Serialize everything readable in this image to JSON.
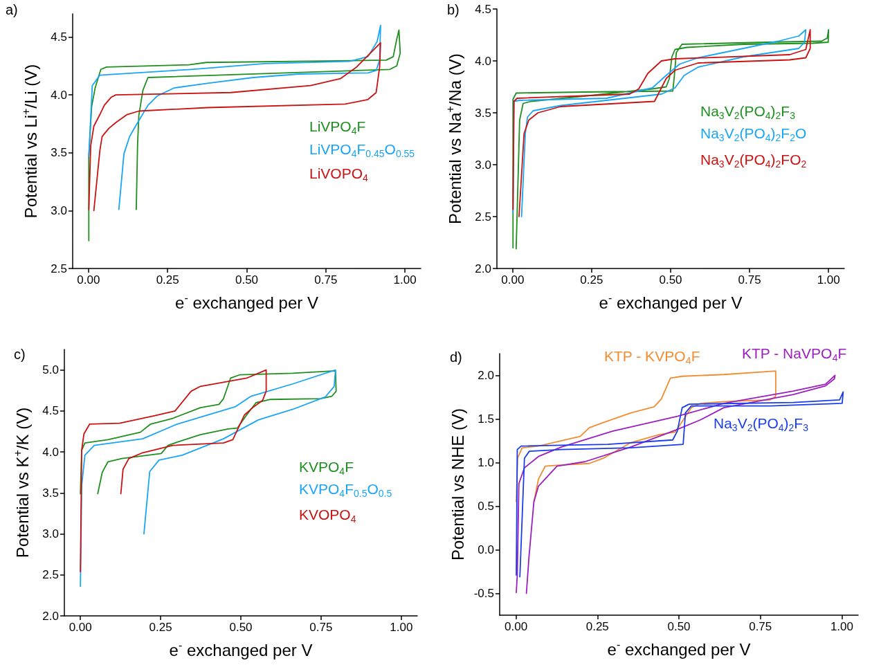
{
  "chart_data": [
    {
      "type": "line",
      "title": "a)",
      "xlabel": "e$^{-}$ exchanged per V",
      "ylabel": "Potential vs Li$^{+}$/Li (V)",
      "xlim": [
        -0.05,
        1.05
      ],
      "xticks": [
        {
          "value": 0,
          "label": "0.00"
        },
        {
          "value": 0.25,
          "label": "0.25"
        },
        {
          "value": 0.5,
          "label": "0.50"
        },
        {
          "value": 0.75,
          "label": "0.75"
        },
        {
          "value": 1,
          "label": "1.00"
        }
      ],
      "ylim": [
        2.5,
        4.7
      ],
      "yticks": [
        {
          "value": 2.5,
          "label": "2.5"
        },
        {
          "value": 3,
          "label": "3.0"
        },
        {
          "value": 3.5,
          "label": "3.5"
        },
        {
          "value": 4,
          "label": "4.0"
        },
        {
          "value": 4.5,
          "label": "4.5"
        }
      ],
      "grid": false,
      "marker": "none",
      "series": [
        {
          "name": "LiVPO$_{4}$F",
          "color": "#1f8f1f",
          "x": [
            0.001,
            0.001,
            0.01,
            0.021,
            0.039,
            0.057,
            0.318,
            0.372,
            0.941,
            0.963,
            0.974,
            0.981,
            0.985,
            0.974,
            0.952,
            0.188,
            0.172,
            0.159,
            0.155,
            0.151
          ],
          "values": [
            2.74,
            3.47,
            3.9,
            4.06,
            4.22,
            4.24,
            4.26,
            4.28,
            4.3,
            4.33,
            4.48,
            4.56,
            4.36,
            4.25,
            4.22,
            4.15,
            4.04,
            3.82,
            3.56,
            3.01
          ]
        },
        {
          "name": "LiVPO$_{4}$F$_{0.45}$O$_{0.55}$",
          "color": "#19a5f5",
          "x": [
            0.001,
            0.012,
            0.036,
            0.325,
            0.557,
            0.825,
            0.883,
            0.912,
            0.923,
            0.92,
            0.909,
            0.883,
            0.666,
            0.521,
            0.376,
            0.271,
            0.217,
            0.188,
            0.151,
            0.13,
            0.112,
            0.096
          ],
          "values": [
            3.47,
            4.08,
            4.17,
            4.22,
            4.27,
            4.29,
            4.33,
            4.46,
            4.6,
            4.3,
            4.21,
            4.19,
            4.18,
            4.15,
            4.1,
            4.06,
            3.99,
            3.91,
            3.74,
            3.64,
            3.49,
            3.01
          ]
        },
        {
          "name": "LiVOPO$_{4}$",
          "color": "#cc1111",
          "x": [
            0.001,
            0.007,
            0.017,
            0.036,
            0.05,
            0.072,
            0.086,
            0.449,
            0.702,
            0.796,
            0.847,
            0.923,
            0.92,
            0.909,
            0.883,
            0.811,
            0.376,
            0.159,
            0.122,
            0.086,
            0.064,
            0.043,
            0.036,
            0.017
          ],
          "values": [
            3.01,
            3.56,
            3.73,
            3.83,
            3.91,
            3.98,
            4.0,
            4.02,
            4.08,
            4.14,
            4.24,
            4.45,
            4.24,
            4.02,
            3.96,
            3.92,
            3.89,
            3.86,
            3.83,
            3.76,
            3.71,
            3.64,
            3.52,
            3.0
          ]
        }
      ]
    },
    {
      "type": "line",
      "title": "b)",
      "xlabel": "e$^{-}$ exchanged per V",
      "ylabel": "Potential vs Na$^{+}$/Na (V)",
      "xlim": [
        -0.05,
        1.05
      ],
      "xticks": [
        {
          "value": 0,
          "label": "0.00"
        },
        {
          "value": 0.25,
          "label": "0.25"
        },
        {
          "value": 0.5,
          "label": "0.50"
        },
        {
          "value": 0.75,
          "label": "0.75"
        },
        {
          "value": 1,
          "label": "1.00"
        }
      ],
      "ylim": [
        2,
        4.5
      ],
      "yticks": [
        {
          "value": 2,
          "label": "2.0"
        },
        {
          "value": 2.5,
          "label": "2.5"
        },
        {
          "value": 3,
          "label": "3.0"
        },
        {
          "value": 3.5,
          "label": "3.5"
        },
        {
          "value": 4,
          "label": "4.0"
        },
        {
          "value": 4.5,
          "label": "4.5"
        }
      ],
      "grid": false,
      "marker": "none",
      "series": [
        {
          "name": "Na$_{3}$V$_{2}$(PO$_{4}$)$_{2}$F$_{3}$",
          "color": "#1f8f1f",
          "x": [
            0.001,
            0.001,
            0.011,
            0.225,
            0.507,
            0.512,
            0.518,
            0.536,
            0.804,
            0.978,
            0.996,
            1.0,
            0.999,
            0.949,
            0.732,
            0.551,
            0.514,
            0.504,
            0.496,
            0.486,
            0.442,
            0.225,
            0.058,
            0.033,
            0.022,
            0.011
          ],
          "values": [
            2.2,
            3.63,
            3.69,
            3.7,
            3.71,
            3.86,
            4.08,
            4.16,
            4.18,
            4.19,
            4.22,
            4.3,
            4.18,
            4.17,
            4.16,
            4.13,
            4.11,
            4.04,
            3.83,
            3.75,
            3.73,
            3.66,
            3.61,
            3.59,
            3.43,
            2.19
          ]
        },
        {
          "name": "Na$_{3}$V$_{2}$(PO$_{4}$)$_{2}$F$_{2}$O",
          "color": "#19a5f5",
          "x": [
            0.001,
            0.004,
            0.022,
            0.297,
            0.442,
            0.486,
            0.529,
            0.587,
            0.841,
            0.906,
            0.928,
            0.924,
            0.906,
            0.732,
            0.587,
            0.543,
            0.514,
            0.471,
            0.152,
            0.065,
            0.047,
            0.04,
            0.028
          ],
          "values": [
            2.54,
            3.61,
            3.62,
            3.64,
            3.74,
            3.86,
            3.97,
            4.03,
            4.19,
            4.24,
            4.3,
            4.18,
            4.12,
            4.04,
            3.94,
            3.86,
            3.74,
            3.68,
            3.57,
            3.52,
            3.46,
            3.3,
            2.5
          ]
        },
        {
          "name": "Na$_{3}$V$_{2}$(PO$_{4}$)$_{2}$FO$_{2}$",
          "color": "#cc1111",
          "x": [
            0.001,
            0.004,
            0.014,
            0.37,
            0.399,
            0.428,
            0.471,
            0.514,
            0.877,
            0.928,
            0.942,
            0.942,
            0.928,
            0.877,
            0.587,
            0.514,
            0.486,
            0.449,
            0.152,
            0.08,
            0.051,
            0.036,
            0.02
          ],
          "values": [
            2.57,
            3.61,
            3.64,
            3.68,
            3.73,
            3.88,
            4.0,
            4.02,
            4.06,
            4.11,
            4.3,
            4.12,
            4.03,
            4.01,
            3.98,
            3.91,
            3.83,
            3.61,
            3.56,
            3.5,
            3.43,
            3.3,
            2.5
          ]
        }
      ]
    },
    {
      "type": "line",
      "title": "c)",
      "xlabel": "e$^{-}$ exchanged per V",
      "ylabel": "Potential vs K$^{+}$/K (V)",
      "xlim": [
        -0.05,
        1.05
      ],
      "xticks": [
        {
          "value": 0,
          "label": "0.00"
        },
        {
          "value": 0.25,
          "label": "0.25"
        },
        {
          "value": 0.5,
          "label": "0.50"
        },
        {
          "value": 0.75,
          "label": "0.75"
        },
        {
          "value": 1,
          "label": "1.00"
        }
      ],
      "ylim": [
        2,
        5.25
      ],
      "yticks": [
        {
          "value": 2,
          "label": "2.0"
        },
        {
          "value": 2.5,
          "label": "2.5"
        },
        {
          "value": 3,
          "label": "3.0"
        },
        {
          "value": 3.5,
          "label": "3.5"
        },
        {
          "value": 4,
          "label": "4.0"
        },
        {
          "value": 4.5,
          "label": "4.5"
        },
        {
          "value": 5,
          "label": "5.0"
        }
      ],
      "grid": false,
      "marker": "none",
      "series": [
        {
          "name": "KVPO$_{4}$F",
          "color": "#1f8f1f",
          "x": [
            0.0,
            0.004,
            0.014,
            0.086,
            0.187,
            0.219,
            0.288,
            0.374,
            0.432,
            0.446,
            0.468,
            0.496,
            0.662,
            0.795,
            0.797,
            0.784,
            0.748,
            0.59,
            0.547,
            0.518,
            0.489,
            0.46,
            0.374,
            0.302,
            0.273,
            0.252,
            0.129,
            0.086,
            0.068,
            0.054
          ],
          "values": [
            3.49,
            4.02,
            4.11,
            4.15,
            4.24,
            4.34,
            4.41,
            4.54,
            4.58,
            4.65,
            4.9,
            4.94,
            4.96,
            4.99,
            4.74,
            4.68,
            4.65,
            4.64,
            4.6,
            4.45,
            4.29,
            4.28,
            4.21,
            4.12,
            4.08,
            3.98,
            3.92,
            3.88,
            3.75,
            3.49
          ]
        },
        {
          "name": "KVPO$_{4}$F$_{0.5}$O$_{0.5}$",
          "color": "#19a5f5",
          "x": [
            0.0,
            0.004,
            0.014,
            0.043,
            0.194,
            0.302,
            0.482,
            0.532,
            0.662,
            0.795,
            0.791,
            0.763,
            0.662,
            0.554,
            0.446,
            0.317,
            0.245,
            0.216,
            0.198
          ],
          "values": [
            2.36,
            3.59,
            3.96,
            4.08,
            4.16,
            4.34,
            4.55,
            4.68,
            4.83,
            5.0,
            4.8,
            4.67,
            4.52,
            4.39,
            4.16,
            3.96,
            3.9,
            3.76,
            3.0
          ]
        },
        {
          "name": "KVOPO$_{4}$",
          "color": "#cc1111",
          "x": [
            0.0,
            0.004,
            0.011,
            0.029,
            0.122,
            0.23,
            0.295,
            0.345,
            0.374,
            0.518,
            0.579,
            0.579,
            0.568,
            0.54,
            0.511,
            0.475,
            0.446,
            0.288,
            0.194,
            0.151,
            0.133,
            0.126
          ],
          "values": [
            2.54,
            4.02,
            4.22,
            4.34,
            4.35,
            4.44,
            4.5,
            4.74,
            4.8,
            4.9,
            5.0,
            4.74,
            4.63,
            4.55,
            4.45,
            4.15,
            4.11,
            4.08,
            3.99,
            3.92,
            3.79,
            3.49
          ]
        }
      ]
    },
    {
      "type": "line",
      "title": "d)",
      "xlabel": "e$^{-}$ exchanged per V",
      "ylabel": "Potential vs NHE (V)",
      "xlim": [
        -0.05,
        1.05
      ],
      "xticks": [
        {
          "value": 0,
          "label": "0.00"
        },
        {
          "value": 0.25,
          "label": "0.25"
        },
        {
          "value": 0.5,
          "label": "0.50"
        },
        {
          "value": 0.75,
          "label": "0.75"
        },
        {
          "value": 1,
          "label": "1.00"
        }
      ],
      "ylim": [
        -0.75,
        2.25
      ],
      "yticks": [
        {
          "value": -0.5,
          "label": "-0.5"
        },
        {
          "value": 0,
          "label": "0.0"
        },
        {
          "value": 0.5,
          "label": "0.5"
        },
        {
          "value": 1,
          "label": "1.0"
        },
        {
          "value": 1.5,
          "label": "1.5"
        },
        {
          "value": 2,
          "label": "2.0"
        }
      ],
      "grid": false,
      "marker": "none",
      "series": [
        {
          "name": "KTP - KVPO$_{4}$F",
          "color": "#f28c30",
          "x": [
            0.001,
            0.005,
            0.019,
            0.069,
            0.197,
            0.225,
            0.268,
            0.353,
            0.424,
            0.446,
            0.474,
            0.51,
            0.638,
            0.797,
            0.797,
            0.78,
            0.638,
            0.566,
            0.538,
            0.51,
            0.488,
            0.439,
            0.353,
            0.268,
            0.225,
            0.126,
            0.09,
            0.069,
            0.055
          ],
          "values": [
            0.55,
            1.05,
            1.17,
            1.19,
            1.3,
            1.4,
            1.46,
            1.57,
            1.64,
            1.73,
            1.97,
            1.99,
            2.01,
            2.05,
            1.76,
            1.72,
            1.7,
            1.68,
            1.63,
            1.47,
            1.35,
            1.32,
            1.23,
            1.05,
            0.99,
            0.97,
            0.96,
            0.81,
            0.55
          ]
        },
        {
          "name": "KTP - NaVPO$_{4}$F",
          "color": "#9b1fc0",
          "x": [
            0.001,
            0.004,
            0.009,
            0.026,
            0.069,
            0.14,
            0.296,
            0.495,
            0.638,
            0.851,
            0.95,
            0.979,
            0.977,
            0.95,
            0.851,
            0.638,
            0.566,
            0.495,
            0.353,
            0.211,
            0.126,
            0.069,
            0.055,
            0.04,
            0.032
          ],
          "values": [
            -0.49,
            -0.29,
            0.76,
            0.94,
            1.07,
            1.18,
            1.36,
            1.53,
            1.68,
            1.82,
            1.9,
            2.0,
            1.96,
            1.88,
            1.78,
            1.63,
            1.49,
            1.38,
            1.18,
            1.01,
            0.96,
            0.73,
            0.55,
            -0.08,
            -0.5
          ]
        },
        {
          "name": "Na$_{3}$V$_{2}$(PO$_{4}$)$_{2}$F$_{3}$",
          "color": "#1a3cf0",
          "x": [
            0.001,
            0.004,
            0.016,
            0.282,
            0.481,
            0.495,
            0.51,
            0.531,
            0.851,
            0.993,
            1.004,
            1.001,
            0.78,
            0.538,
            0.52,
            0.513,
            0.353,
            0.14,
            0.041,
            0.026,
            0.012
          ],
          "values": [
            -0.29,
            1.15,
            1.19,
            1.21,
            1.26,
            1.36,
            1.63,
            1.67,
            1.69,
            1.72,
            1.81,
            1.68,
            1.65,
            1.65,
            1.57,
            1.21,
            1.17,
            1.15,
            1.13,
            1.05,
            -0.31
          ]
        }
      ]
    }
  ]
}
